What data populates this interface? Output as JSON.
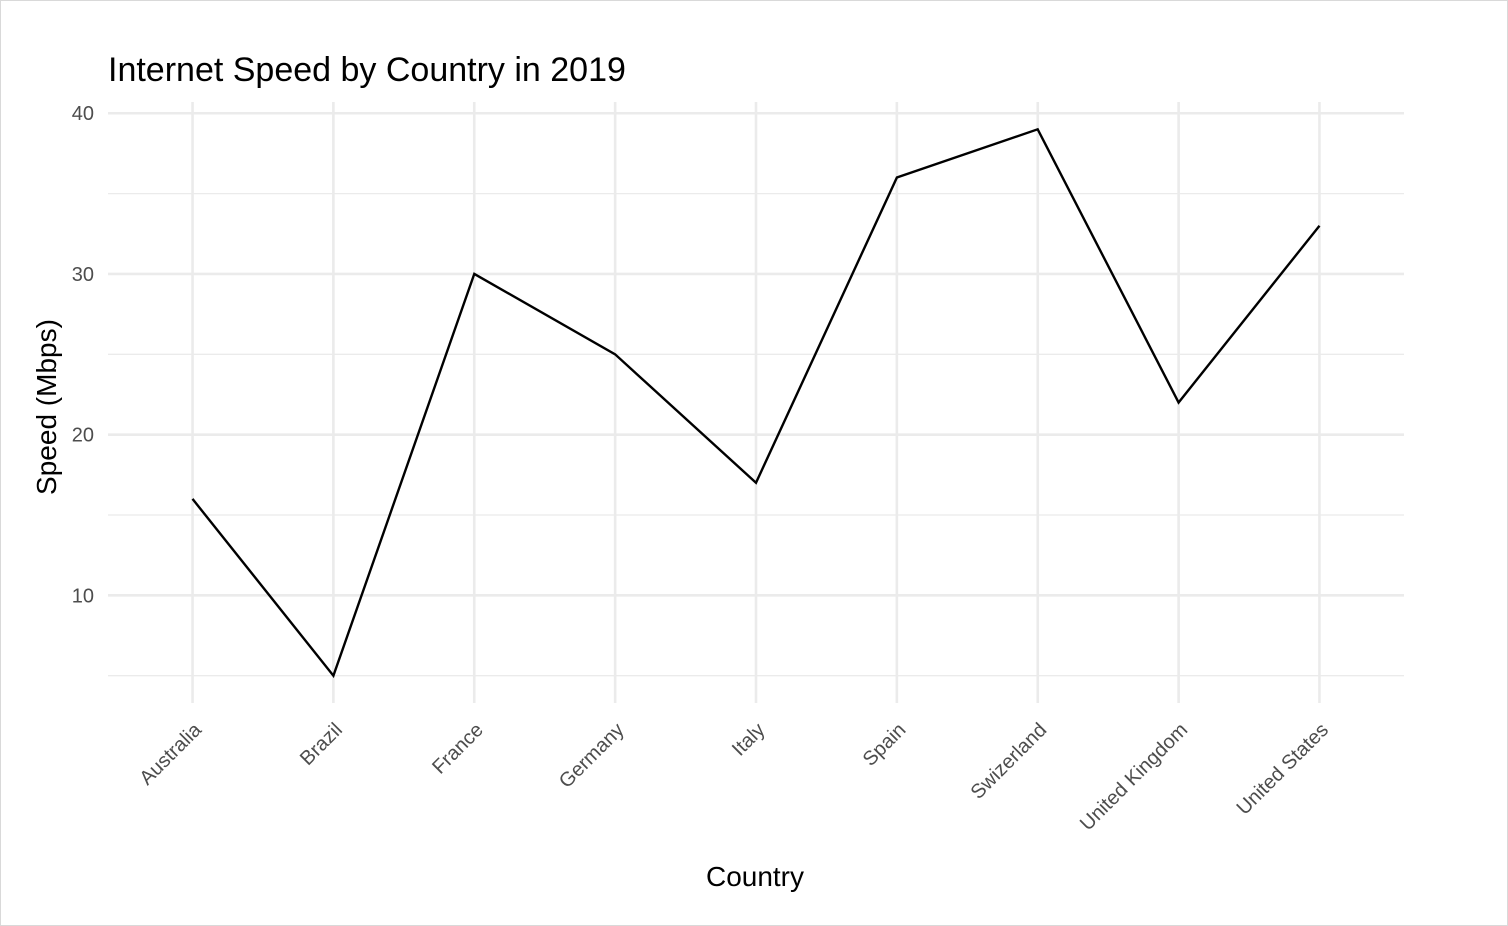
{
  "chart_data": {
    "type": "line",
    "title": "Internet Speed by Country in 2019",
    "xlabel": "Country",
    "ylabel": "Speed (Mbps)",
    "categories": [
      "Australia",
      "Brazil",
      "France",
      "Germany",
      "Italy",
      "Spain",
      "Swizerland",
      "United Kingdom",
      "United States"
    ],
    "values": [
      16,
      5,
      30,
      25,
      17,
      36,
      39,
      22,
      33
    ],
    "y_ticks": [
      10,
      20,
      30,
      40
    ],
    "ylim": [
      3.3,
      40.7
    ],
    "grid": true,
    "line_color": "#000000"
  }
}
